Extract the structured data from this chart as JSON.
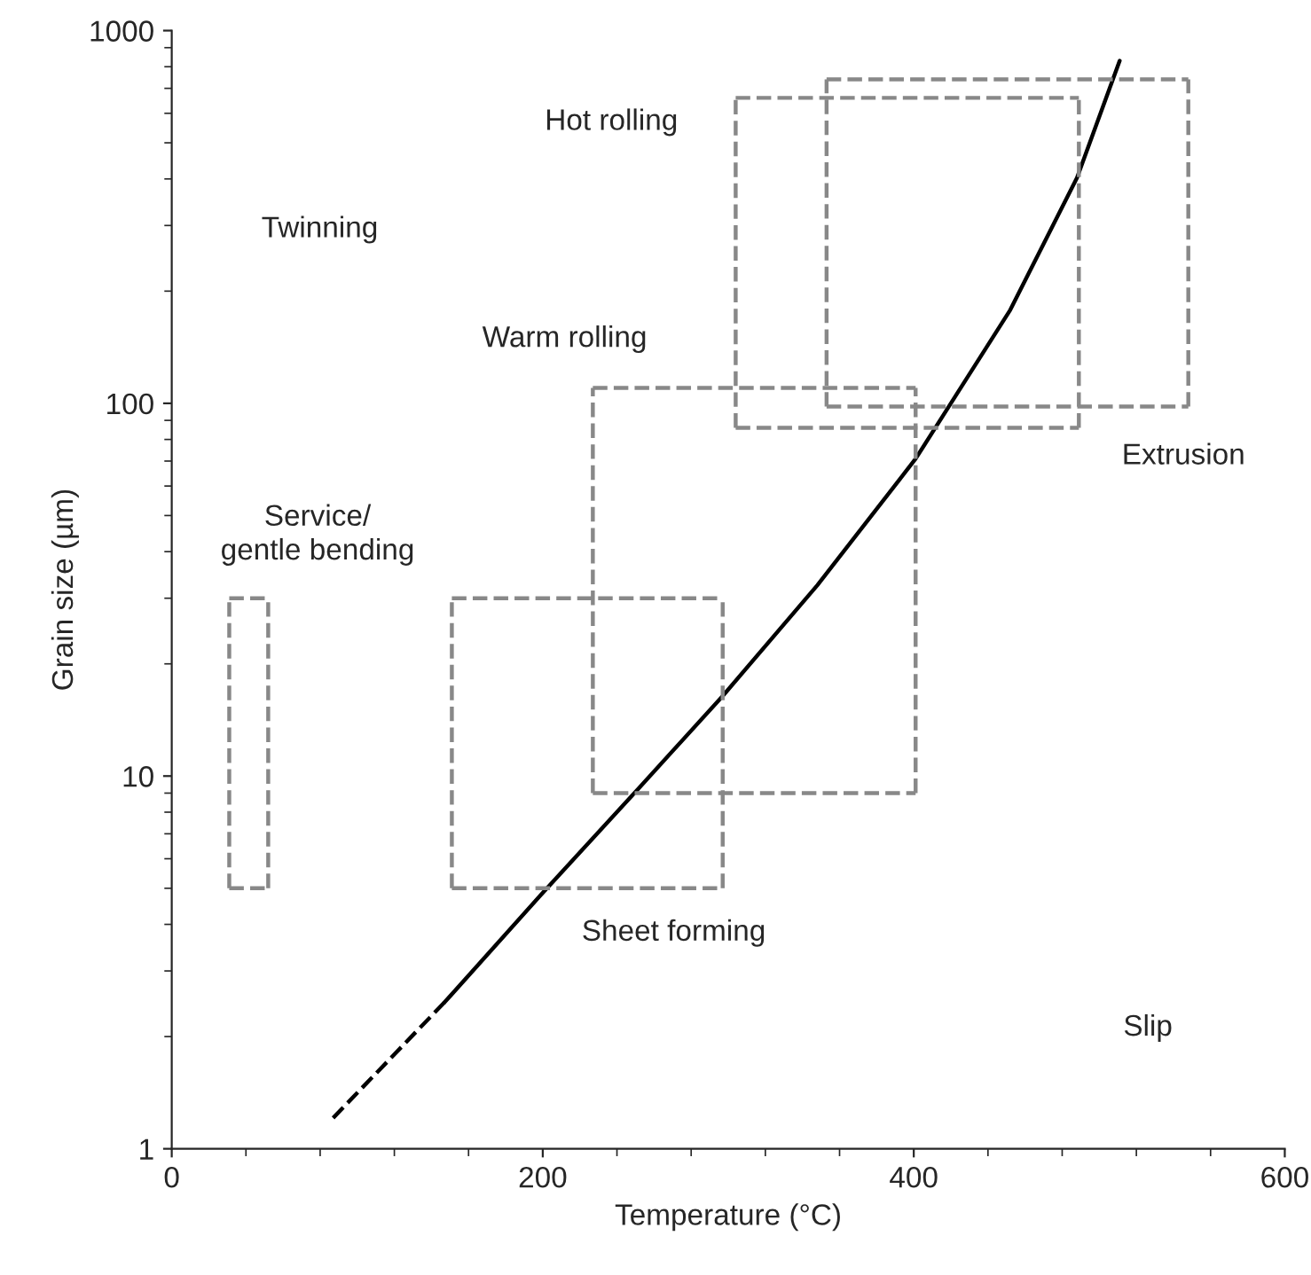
{
  "chart_data": {
    "type": "line",
    "xlabel": "Temperature (°C)",
    "ylabel": "Grain size (µm)",
    "log": "y",
    "xlim": [
      0,
      600
    ],
    "xticks": [
      0,
      200,
      400,
      600
    ],
    "ylim": [
      1,
      1000
    ],
    "yticks": [
      1,
      10,
      100,
      1000
    ],
    "grid": false,
    "marker": "none",
    "series": [
      {
        "color": "#000000",
        "line_style": "dashed",
        "x": [
          87,
          147
        ],
        "values": [
          1.21,
          2.47
        ]
      },
      {
        "color": "#000000",
        "line_style": "solid",
        "x": [
          147,
          199,
          252,
          297,
          348,
          401,
          420,
          452,
          488,
          511
        ],
        "values": [
          2.47,
          4.8,
          9.3,
          16.4,
          32.5,
          71,
          100,
          178,
          403,
          830
        ]
      },
      {
        "color": "#888888",
        "line_style": "dashed",
        "x": [
          31,
          52
        ],
        "values": [
          5,
          5
        ]
      },
      {
        "color": "#888888",
        "line_style": "dashed",
        "x": [
          31,
          52
        ],
        "values": [
          30,
          30
        ]
      },
      {
        "color": "#888888",
        "line_style": "dashed",
        "x": [
          31,
          31
        ],
        "values": [
          5,
          30
        ]
      },
      {
        "color": "#888888",
        "line_style": "dashed",
        "x": [
          52,
          52
        ],
        "values": [
          5,
          30
        ]
      },
      {
        "color": "#888888",
        "line_style": "dashed",
        "x": [
          151,
          297
        ],
        "values": [
          5,
          5
        ]
      },
      {
        "color": "#888888",
        "line_style": "dashed",
        "x": [
          151,
          297
        ],
        "values": [
          30,
          30
        ]
      },
      {
        "color": "#888888",
        "line_style": "dashed",
        "x": [
          151,
          151
        ],
        "values": [
          5,
          30
        ]
      },
      {
        "color": "#888888",
        "line_style": "dashed",
        "x": [
          297,
          297
        ],
        "values": [
          5,
          30
        ]
      },
      {
        "color": "#888888",
        "line_style": "dashed",
        "x": [
          227,
          401
        ],
        "values": [
          9,
          9
        ]
      },
      {
        "color": "#888888",
        "line_style": "dashed",
        "x": [
          227,
          401
        ],
        "values": [
          110,
          110
        ]
      },
      {
        "color": "#888888",
        "line_style": "dashed",
        "x": [
          227,
          227
        ],
        "values": [
          9,
          110
        ]
      },
      {
        "color": "#888888",
        "line_style": "dashed",
        "x": [
          401,
          401
        ],
        "values": [
          9,
          110
        ]
      },
      {
        "color": "#888888",
        "line_style": "dashed",
        "x": [
          304,
          489
        ],
        "values": [
          86,
          86
        ]
      },
      {
        "color": "#888888",
        "line_style": "dashed",
        "x": [
          304,
          489
        ],
        "values": [
          660,
          660
        ]
      },
      {
        "color": "#888888",
        "line_style": "dashed",
        "x": [
          304,
          304
        ],
        "values": [
          86,
          660
        ]
      },
      {
        "color": "#888888",
        "line_style": "dashed",
        "x": [
          489,
          489
        ],
        "values": [
          86,
          660
        ]
      },
      {
        "color": "#888888",
        "line_style": "dashed",
        "x": [
          353,
          548
        ],
        "values": [
          98,
          98
        ]
      },
      {
        "color": "#888888",
        "line_style": "dashed",
        "x": [
          353,
          548
        ],
        "values": [
          740,
          740
        ]
      },
      {
        "color": "#888888",
        "line_style": "dashed",
        "x": [
          353,
          353
        ],
        "values": [
          98,
          740
        ]
      },
      {
        "color": "#888888",
        "line_style": "dashed",
        "x": [
          548,
          548
        ],
        "values": [
          98,
          740
        ]
      }
    ],
    "annotations": [
      "Hot rolling",
      "Twinning",
      "Warm rolling",
      "Extrusion",
      "Service/\ngentle bending",
      "Sheet forming",
      "Slip"
    ]
  }
}
